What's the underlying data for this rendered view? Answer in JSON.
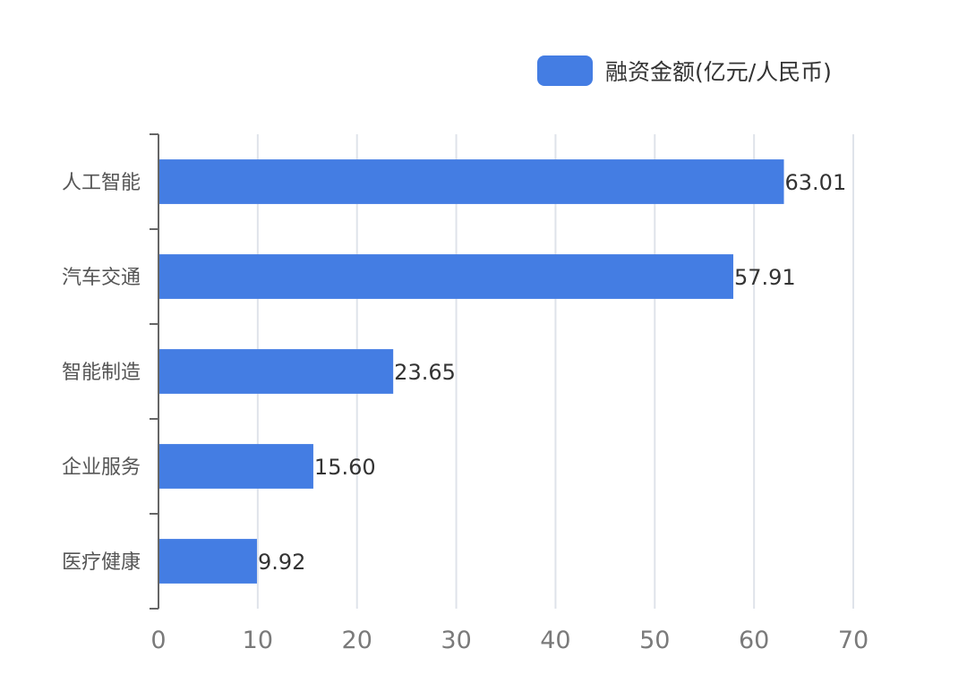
{
  "chart_data": {
    "type": "bar",
    "orientation": "horizontal",
    "categories": [
      "人工智能",
      "汽车交通",
      "智能制造",
      "企业服务",
      "医疗健康"
    ],
    "series": [
      {
        "name": "融资金额(亿元/人民币)",
        "values": [
          63.01,
          57.91,
          23.65,
          15.6,
          9.92
        ]
      }
    ],
    "data_labels": [
      "63.01",
      "57.91",
      "23.65",
      "15.60",
      "9.92"
    ],
    "x_ticks": [
      "0",
      "10",
      "20",
      "30",
      "40",
      "50",
      "60",
      "70"
    ],
    "xlim": [
      0,
      70
    ],
    "grid": "vertical",
    "legend_position": "top-right",
    "bar_color": "#447de3"
  }
}
